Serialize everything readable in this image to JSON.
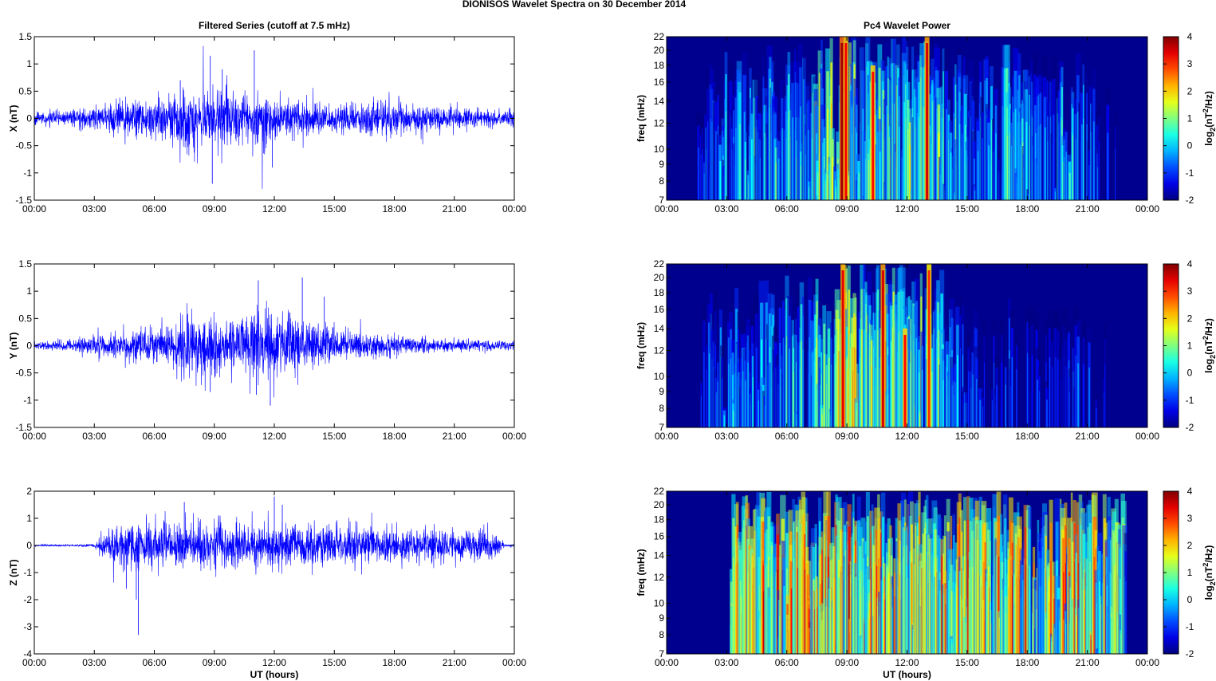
{
  "figure": {
    "suptitle": "DIONISOS Wavelet Spectra on 30 December  2014"
  },
  "chart_data": [
    {
      "type": "line",
      "panel": "ts-x",
      "title": "Filtered Series (cutoff at 7.5 mHz)",
      "xlabel": "",
      "ylabel": "X (nT)",
      "xlim": [
        0,
        24
      ],
      "ylim": [
        -1.5,
        1.5
      ],
      "yticks": [
        -1.5,
        -1,
        -0.5,
        0,
        0.5,
        1,
        1.5
      ],
      "ytick_labels": [
        "-1.5",
        "-1",
        "-0.5",
        "0",
        "0.5",
        "1",
        "1.5"
      ],
      "xtick_labels": [
        "00:00",
        "03:00",
        "06:00",
        "09:00",
        "12:00",
        "15:00",
        "18:00",
        "21:00",
        "00:00"
      ],
      "color": "#0000ff",
      "envelope": {
        "hours": [
          0,
          1,
          2,
          3,
          4,
          5,
          6,
          7,
          8,
          9,
          10,
          11,
          12,
          13,
          14,
          15,
          16,
          17,
          18,
          19,
          20,
          21,
          22,
          23,
          24
        ],
        "amplitude_nT": [
          0.1,
          0.11,
          0.14,
          0.2,
          0.24,
          0.28,
          0.35,
          0.42,
          0.5,
          0.52,
          0.42,
          0.4,
          0.38,
          0.32,
          0.28,
          0.26,
          0.25,
          0.3,
          0.26,
          0.22,
          0.2,
          0.18,
          0.16,
          0.14,
          0.12
        ]
      },
      "spikes": [
        {
          "hour": 8.8,
          "value": 1.15
        },
        {
          "hour": 8.9,
          "value": -1.2
        },
        {
          "hour": 11.0,
          "value": 1.25
        },
        {
          "hour": 9.4,
          "value": 0.9
        },
        {
          "hour": 11.9,
          "value": -0.9
        },
        {
          "hour": 7.3,
          "value": 0.7
        }
      ]
    },
    {
      "type": "line",
      "panel": "ts-y",
      "title": "",
      "xlabel": "",
      "ylabel": "Y (nT)",
      "xlim": [
        0,
        24
      ],
      "ylim": [
        -1.5,
        1.5
      ],
      "yticks": [
        -1.5,
        -1,
        -0.5,
        0,
        0.5,
        1,
        1.5
      ],
      "ytick_labels": [
        "-1.5",
        "-1",
        "-0.5",
        "0",
        "0.5",
        "1",
        "1.5"
      ],
      "xtick_labels": [
        "00:00",
        "03:00",
        "06:00",
        "09:00",
        "12:00",
        "15:00",
        "18:00",
        "21:00",
        "00:00"
      ],
      "color": "#0000ff",
      "envelope": {
        "hours": [
          0,
          1,
          2,
          3,
          4,
          5,
          6,
          7,
          8,
          9,
          10,
          11,
          12,
          13,
          14,
          15,
          16,
          17,
          18,
          19,
          20,
          21,
          22,
          23,
          24
        ],
        "amplitude_nT": [
          0.06,
          0.07,
          0.09,
          0.18,
          0.2,
          0.24,
          0.3,
          0.36,
          0.48,
          0.45,
          0.42,
          0.55,
          0.45,
          0.5,
          0.36,
          0.26,
          0.22,
          0.2,
          0.16,
          0.14,
          0.12,
          0.11,
          0.12,
          0.1,
          0.08
        ]
      },
      "spikes": [
        {
          "hour": 11.2,
          "value": 1.2
        },
        {
          "hour": 13.4,
          "value": 1.25
        },
        {
          "hour": 11.8,
          "value": -1.1
        },
        {
          "hour": 8.8,
          "value": -0.85
        },
        {
          "hour": 14.5,
          "value": 0.9
        },
        {
          "hour": 11.1,
          "value": -0.9
        }
      ]
    },
    {
      "type": "line",
      "panel": "ts-z",
      "title": "",
      "xlabel": "UT (hours)",
      "ylabel": "Z (nT)",
      "xlim": [
        0,
        24
      ],
      "ylim": [
        -4,
        2
      ],
      "yticks": [
        -4,
        -3,
        -2,
        -1,
        0,
        1,
        2
      ],
      "ytick_labels": [
        "-4",
        "-3",
        "-2",
        "-1",
        "0",
        "1",
        "2"
      ],
      "xtick_labels": [
        "00:00",
        "03:00",
        "06:00",
        "09:00",
        "12:00",
        "15:00",
        "18:00",
        "21:00",
        "00:00"
      ],
      "color": "#0000ff",
      "envelope": {
        "hours": [
          0,
          1,
          2,
          3,
          3.3,
          4,
          5,
          6,
          7,
          8,
          9,
          10,
          11,
          12,
          13,
          14,
          15,
          16,
          17,
          18,
          19,
          20,
          21,
          22,
          23,
          23.5,
          24
        ],
        "amplitude_nT": [
          0.03,
          0.03,
          0.04,
          0.06,
          0.3,
          0.65,
          0.75,
          0.7,
          0.7,
          0.7,
          0.75,
          0.7,
          0.7,
          0.72,
          0.7,
          0.68,
          0.68,
          0.66,
          0.62,
          0.62,
          0.6,
          0.58,
          0.56,
          0.55,
          0.45,
          0.05,
          0.04
        ]
      },
      "spikes": [
        {
          "hour": 5.2,
          "value": -3.3
        },
        {
          "hour": 5.1,
          "value": -2.0
        },
        {
          "hour": 12.0,
          "value": 1.8
        },
        {
          "hour": 12.4,
          "value": 1.5
        },
        {
          "hour": 4.6,
          "value": -1.6
        },
        {
          "hour": 7.5,
          "value": 1.6
        }
      ]
    },
    {
      "type": "heatmap",
      "panel": "spec-x",
      "title": "Pc4 Wavelet Power",
      "xlabel": "",
      "ylabel": "freq (mHz)",
      "xlim": [
        0,
        24
      ],
      "ylim": [
        7,
        22
      ],
      "yscale": "log",
      "yticks": [
        7,
        8,
        9,
        10,
        12,
        14,
        16,
        18,
        20,
        22
      ],
      "xtick_labels": [
        "00:00",
        "03:00",
        "06:00",
        "09:00",
        "12:00",
        "15:00",
        "18:00",
        "21:00",
        "00:00"
      ],
      "colormap": "jet",
      "clim": [
        -2,
        4
      ],
      "colorbar_label": "log2(nT2/Hz)",
      "colorbar_ticks": [
        -2,
        -1,
        0,
        1,
        2,
        3,
        4
      ],
      "background": "#00008f",
      "activity": {
        "hours": [
          0,
          1,
          1.5,
          2,
          3,
          4,
          5,
          6,
          7,
          8,
          9,
          10,
          11,
          12,
          13,
          14,
          15,
          16,
          17,
          18,
          19,
          20,
          21,
          22,
          23,
          24
        ],
        "level": [
          0.0,
          0.05,
          0.2,
          0.35,
          0.5,
          0.5,
          0.55,
          0.5,
          0.55,
          0.75,
          0.85,
          0.7,
          0.7,
          0.7,
          0.75,
          0.55,
          0.45,
          0.45,
          0.6,
          0.5,
          0.5,
          0.5,
          0.4,
          0.25,
          0.1,
          0.05
        ]
      },
      "bursts": [
        {
          "hour": 8.75,
          "level": 3.8,
          "top_mHz": 22
        },
        {
          "hour": 8.95,
          "level": 3.3,
          "top_mHz": 22
        },
        {
          "hour": 10.3,
          "level": 3.2,
          "top_mHz": 18
        },
        {
          "hour": 13.0,
          "level": 3.5,
          "top_mHz": 22
        }
      ]
    },
    {
      "type": "heatmap",
      "panel": "spec-y",
      "title": "",
      "xlabel": "",
      "ylabel": "freq (mHz)",
      "xlim": [
        0,
        24
      ],
      "ylim": [
        7,
        22
      ],
      "yscale": "log",
      "yticks": [
        7,
        8,
        9,
        10,
        12,
        14,
        16,
        18,
        20,
        22
      ],
      "xtick_labels": [
        "00:00",
        "03:00",
        "06:00",
        "09:00",
        "12:00",
        "15:00",
        "18:00",
        "21:00",
        "00:00"
      ],
      "colormap": "jet",
      "clim": [
        -2,
        4
      ],
      "colorbar_label": "log2(nT2/Hz)",
      "colorbar_ticks": [
        -2,
        -1,
        0,
        1,
        2,
        3,
        4
      ],
      "background": "#00008f",
      "activity": {
        "hours": [
          0,
          1,
          1.5,
          2,
          3,
          4,
          5,
          6,
          7,
          8,
          9,
          10,
          11,
          12,
          13,
          14,
          15,
          16,
          17,
          18,
          19,
          20,
          21,
          22,
          23,
          24
        ],
        "level": [
          0.0,
          0.03,
          0.15,
          0.3,
          0.45,
          0.4,
          0.45,
          0.5,
          0.55,
          0.7,
          0.85,
          0.7,
          0.75,
          0.7,
          0.75,
          0.5,
          0.3,
          0.2,
          0.3,
          0.25,
          0.2,
          0.25,
          0.3,
          0.15,
          0.05,
          0.03
        ]
      },
      "bursts": [
        {
          "hour": 8.8,
          "level": 3.4,
          "top_mHz": 22
        },
        {
          "hour": 10.8,
          "level": 3.5,
          "top_mHz": 22
        },
        {
          "hour": 11.9,
          "level": 3.2,
          "top_mHz": 14
        },
        {
          "hour": 13.1,
          "level": 3.0,
          "top_mHz": 22
        }
      ]
    },
    {
      "type": "heatmap",
      "panel": "spec-z",
      "title": "",
      "xlabel": "UT (hours)",
      "ylabel": "freq (mHz)",
      "xlim": [
        0,
        24
      ],
      "ylim": [
        7,
        22
      ],
      "yscale": "log",
      "yticks": [
        7,
        8,
        9,
        10,
        12,
        14,
        16,
        18,
        20,
        22
      ],
      "xtick_labels": [
        "00:00",
        "03:00",
        "06:00",
        "09:00",
        "12:00",
        "15:00",
        "18:00",
        "21:00",
        "00:00"
      ],
      "colormap": "jet",
      "clim": [
        -2,
        4
      ],
      "colorbar_label": "log2(nT2/Hz)",
      "colorbar_ticks": [
        -2,
        -1,
        0,
        1,
        2,
        3,
        4
      ],
      "background": "#00008f",
      "activity": {
        "hours": [
          0,
          1,
          2,
          3.1,
          3.3,
          4,
          5,
          6,
          7,
          8,
          9,
          10,
          11,
          12,
          13,
          14,
          15,
          16,
          17,
          18,
          19,
          20,
          21,
          22,
          22.8,
          23,
          24
        ],
        "level": [
          0.0,
          0.0,
          0.0,
          0.0,
          0.85,
          1.0,
          1.0,
          0.95,
          0.95,
          0.95,
          1.0,
          0.95,
          0.95,
          0.95,
          0.95,
          0.95,
          0.95,
          0.95,
          0.95,
          0.95,
          0.9,
          0.95,
          0.95,
          0.9,
          0.85,
          0.0,
          0.0
        ]
      },
      "bursts": []
    }
  ]
}
